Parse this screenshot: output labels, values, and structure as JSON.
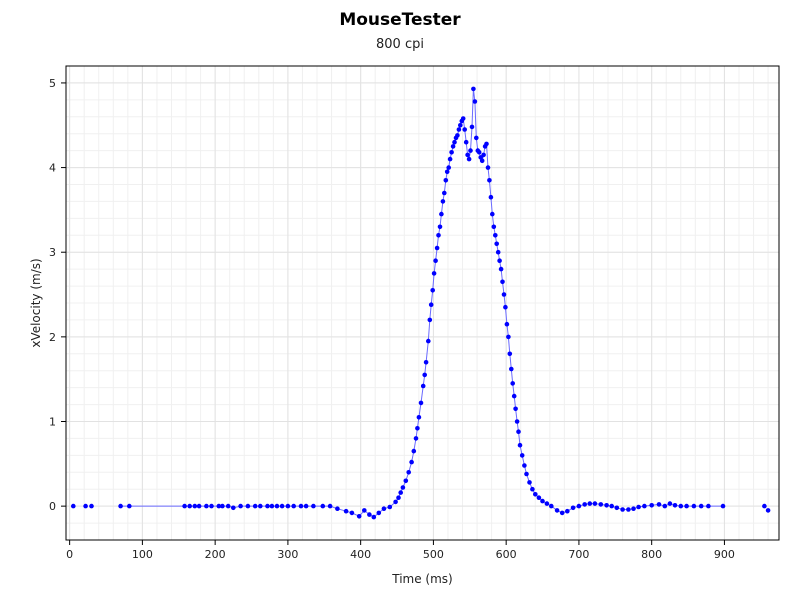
{
  "chart_data": {
    "type": "scatter",
    "title": "MouseTester",
    "subtitle": "800 cpi",
    "xlabel": "Time (ms)",
    "ylabel": "xVelocity (m/s)",
    "xlim": [
      -5,
      975
    ],
    "ylim": [
      -0.4,
      5.2
    ],
    "xticks": [
      0,
      100,
      200,
      300,
      400,
      500,
      600,
      700,
      800,
      900
    ],
    "yticks": [
      0,
      1,
      2,
      3,
      4,
      5
    ],
    "grid": true,
    "legend": "none",
    "point_color": "#0000ff",
    "line_color": "#6a6aff",
    "series": [
      {
        "points": [
          [
            5,
            0
          ],
          [
            22,
            0
          ],
          [
            30,
            0
          ],
          [
            70,
            0
          ],
          [
            82,
            0
          ],
          [
            158,
            0
          ],
          [
            165,
            0
          ],
          [
            172,
            0
          ],
          [
            178,
            0
          ],
          [
            188,
            0
          ],
          [
            195,
            0
          ],
          [
            205,
            0
          ],
          [
            210,
            0
          ],
          [
            218,
            0
          ],
          [
            225,
            -0.02
          ],
          [
            235,
            0
          ],
          [
            245,
            0
          ],
          [
            255,
            0
          ],
          [
            262,
            0
          ],
          [
            272,
            0
          ],
          [
            278,
            0
          ],
          [
            285,
            0
          ],
          [
            292,
            0
          ],
          [
            300,
            0
          ],
          [
            308,
            0
          ],
          [
            318,
            0
          ],
          [
            325,
            0
          ],
          [
            335,
            0
          ],
          [
            348,
            0
          ],
          [
            358,
            0
          ],
          [
            368,
            -0.03
          ],
          [
            380,
            -0.06
          ],
          [
            388,
            -0.08
          ],
          [
            398,
            -0.12
          ],
          [
            405,
            -0.05
          ],
          [
            412,
            -0.1
          ],
          [
            418,
            -0.13
          ],
          [
            425,
            -0.08
          ],
          [
            432,
            -0.03
          ],
          [
            440,
            -0.01
          ],
          [
            448,
            0.05
          ],
          [
            452,
            0.1
          ],
          [
            455,
            0.16
          ],
          [
            458,
            0.22
          ],
          [
            462,
            0.3
          ],
          [
            466,
            0.4
          ],
          [
            470,
            0.52
          ],
          [
            473,
            0.65
          ],
          [
            476,
            0.8
          ],
          [
            478,
            0.92
          ],
          [
            480,
            1.05
          ],
          [
            483,
            1.22
          ],
          [
            486,
            1.42
          ],
          [
            488,
            1.55
          ],
          [
            490,
            1.7
          ],
          [
            493,
            1.95
          ],
          [
            495,
            2.2
          ],
          [
            497,
            2.38
          ],
          [
            499,
            2.55
          ],
          [
            501,
            2.75
          ],
          [
            503,
            2.9
          ],
          [
            505,
            3.05
          ],
          [
            507,
            3.2
          ],
          [
            509,
            3.3
          ],
          [
            511,
            3.45
          ],
          [
            513,
            3.6
          ],
          [
            515,
            3.7
          ],
          [
            517,
            3.85
          ],
          [
            519,
            3.95
          ],
          [
            521,
            4.0
          ],
          [
            523,
            4.1
          ],
          [
            525,
            4.18
          ],
          [
            527,
            4.25
          ],
          [
            529,
            4.3
          ],
          [
            531,
            4.35
          ],
          [
            533,
            4.38
          ],
          [
            535,
            4.45
          ],
          [
            537,
            4.5
          ],
          [
            539,
            4.55
          ],
          [
            541,
            4.58
          ],
          [
            543,
            4.45
          ],
          [
            545,
            4.3
          ],
          [
            547,
            4.15
          ],
          [
            549,
            4.1
          ],
          [
            551,
            4.2
          ],
          [
            553,
            4.48
          ],
          [
            555,
            4.93
          ],
          [
            557,
            4.78
          ],
          [
            559,
            4.35
          ],
          [
            561,
            4.2
          ],
          [
            563,
            4.18
          ],
          [
            565,
            4.12
          ],
          [
            567,
            4.08
          ],
          [
            569,
            4.15
          ],
          [
            571,
            4.25
          ],
          [
            573,
            4.28
          ],
          [
            575,
            4.0
          ],
          [
            577,
            3.85
          ],
          [
            579,
            3.65
          ],
          [
            581,
            3.45
          ],
          [
            583,
            3.3
          ],
          [
            585,
            3.2
          ],
          [
            587,
            3.1
          ],
          [
            589,
            3.0
          ],
          [
            591,
            2.9
          ],
          [
            593,
            2.8
          ],
          [
            595,
            2.65
          ],
          [
            597,
            2.5
          ],
          [
            599,
            2.35
          ],
          [
            601,
            2.15
          ],
          [
            603,
            2.0
          ],
          [
            605,
            1.8
          ],
          [
            607,
            1.62
          ],
          [
            609,
            1.45
          ],
          [
            611,
            1.3
          ],
          [
            613,
            1.15
          ],
          [
            615,
            1.0
          ],
          [
            617,
            0.88
          ],
          [
            619,
            0.72
          ],
          [
            622,
            0.6
          ],
          [
            625,
            0.48
          ],
          [
            628,
            0.38
          ],
          [
            632,
            0.28
          ],
          [
            636,
            0.2
          ],
          [
            640,
            0.14
          ],
          [
            645,
            0.1
          ],
          [
            650,
            0.06
          ],
          [
            656,
            0.03
          ],
          [
            662,
            0.0
          ],
          [
            670,
            -0.05
          ],
          [
            677,
            -0.08
          ],
          [
            684,
            -0.06
          ],
          [
            692,
            -0.02
          ],
          [
            700,
            0.0
          ],
          [
            708,
            0.02
          ],
          [
            715,
            0.03
          ],
          [
            722,
            0.03
          ],
          [
            730,
            0.02
          ],
          [
            738,
            0.01
          ],
          [
            745,
            0.0
          ],
          [
            752,
            -0.02
          ],
          [
            760,
            -0.04
          ],
          [
            768,
            -0.04
          ],
          [
            775,
            -0.03
          ],
          [
            782,
            -0.01
          ],
          [
            790,
            0.0
          ],
          [
            800,
            0.01
          ],
          [
            810,
            0.02
          ],
          [
            818,
            0.0
          ],
          [
            825,
            0.03
          ],
          [
            832,
            0.01
          ],
          [
            840,
            0.0
          ],
          [
            848,
            0.0
          ],
          [
            858,
            0.0
          ],
          [
            868,
            0.0
          ],
          [
            878,
            0.0
          ],
          [
            898,
            0.0
          ],
          [
            955,
            0.0
          ],
          [
            960,
            -0.05
          ]
        ]
      }
    ]
  }
}
